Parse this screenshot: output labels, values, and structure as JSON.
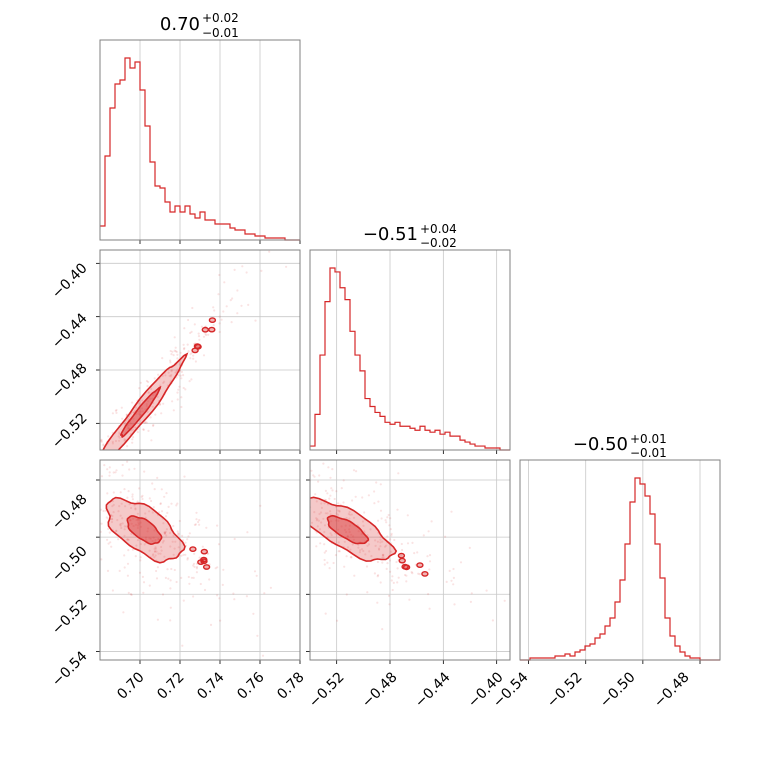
{
  "chart_data": {
    "type": "corner",
    "color": "#d62728",
    "grid": true,
    "params": [
      {
        "title": {
          "value": "0.70",
          "plus": "+0.02",
          "minus": "−0.01"
        },
        "range": [
          0.68,
          0.78
        ],
        "ticks": [
          0.7,
          0.72,
          0.74,
          0.76,
          0.78
        ],
        "tick_labels": [
          "0.70",
          "0.72",
          "0.74",
          "0.76",
          "0.78"
        ]
      },
      {
        "title": {
          "value": "−0.51",
          "plus": "+0.04",
          "minus": "−0.02"
        },
        "range": [
          -0.54,
          -0.39
        ],
        "ticks": [
          -0.52,
          -0.48,
          -0.44,
          -0.4
        ],
        "tick_labels": [
          "−0.52",
          "−0.48",
          "−0.44",
          "−0.40"
        ]
      },
      {
        "title": {
          "value": "−0.50",
          "plus": "+0.01",
          "minus": "−0.01"
        },
        "range": [
          -0.543,
          -0.473
        ],
        "ticks": [
          -0.54,
          -0.52,
          -0.5,
          -0.48
        ],
        "tick_labels": [
          "−0.54",
          "−0.52",
          "−0.50",
          "−0.48"
        ]
      }
    ],
    "histograms": [
      {
        "param": 0,
        "bin_edges": [
          0.68,
          0.6825,
          0.685,
          0.6875,
          0.69,
          0.6925,
          0.695,
          0.6975,
          0.7,
          0.7025,
          0.705,
          0.7075,
          0.71,
          0.7125,
          0.715,
          0.7175,
          0.72,
          0.7225,
          0.725,
          0.7275,
          0.73,
          0.7325,
          0.735,
          0.7375,
          0.74,
          0.7425,
          0.745,
          0.7475,
          0.75,
          0.7525,
          0.755,
          0.7575,
          0.76,
          0.7625,
          0.765,
          0.7675,
          0.77,
          0.7725,
          0.775,
          0.7775,
          0.78
        ],
        "counts": [
          0.07,
          0.42,
          0.66,
          0.78,
          0.8,
          0.91,
          0.86,
          0.89,
          0.75,
          0.57,
          0.39,
          0.27,
          0.26,
          0.19,
          0.14,
          0.17,
          0.14,
          0.17,
          0.13,
          0.11,
          0.14,
          0.1,
          0.1,
          0.08,
          0.08,
          0.08,
          0.06,
          0.05,
          0.05,
          0.03,
          0.03,
          0.02,
          0.02,
          0.01,
          0.01,
          0.01,
          0.01,
          0.0,
          0.0,
          0.0
        ]
      },
      {
        "param": 1,
        "bin_edges": [
          -0.54,
          -0.53625,
          -0.5325,
          -0.52875,
          -0.525,
          -0.52125,
          -0.5175,
          -0.51375,
          -0.51,
          -0.50625,
          -0.5025,
          -0.49875,
          -0.495,
          -0.49125,
          -0.4875,
          -0.48375,
          -0.48,
          -0.47625,
          -0.4725,
          -0.46875,
          -0.465,
          -0.46125,
          -0.4575,
          -0.45375,
          -0.45,
          -0.44625,
          -0.4425,
          -0.43875,
          -0.435,
          -0.43125,
          -0.4275,
          -0.42375,
          -0.42,
          -0.41625,
          -0.4125,
          -0.40875,
          -0.405,
          -0.40125,
          -0.3975,
          -0.39375,
          -0.39
        ],
        "counts": [
          0.02,
          0.18,
          0.48,
          0.75,
          0.92,
          0.9,
          0.82,
          0.76,
          0.6,
          0.48,
          0.4,
          0.26,
          0.22,
          0.19,
          0.17,
          0.14,
          0.13,
          0.14,
          0.12,
          0.12,
          0.11,
          0.1,
          0.12,
          0.1,
          0.09,
          0.1,
          0.08,
          0.09,
          0.07,
          0.07,
          0.05,
          0.04,
          0.03,
          0.02,
          0.02,
          0.01,
          0.01,
          0.01,
          0.0,
          0.0
        ]
      },
      {
        "param": 2,
        "bin_edges": [
          -0.543,
          -0.54125,
          -0.5395,
          -0.53775,
          -0.536,
          -0.53425,
          -0.5325,
          -0.53075,
          -0.529,
          -0.52725,
          -0.5255,
          -0.52375,
          -0.522,
          -0.52025,
          -0.5185,
          -0.51675,
          -0.515,
          -0.51325,
          -0.5115,
          -0.50975,
          -0.508,
          -0.50625,
          -0.5045,
          -0.50275,
          -0.501,
          -0.49925,
          -0.4975,
          -0.49575,
          -0.494,
          -0.49225,
          -0.4905,
          -0.48875,
          -0.487,
          -0.48525,
          -0.4835,
          -0.48175,
          -0.48,
          -0.47825,
          -0.4765,
          -0.47475,
          -0.473
        ],
        "counts": [
          0.0,
          0.0,
          0.01,
          0.01,
          0.01,
          0.01,
          0.01,
          0.02,
          0.02,
          0.03,
          0.02,
          0.04,
          0.05,
          0.07,
          0.08,
          0.11,
          0.13,
          0.17,
          0.21,
          0.29,
          0.4,
          0.58,
          0.79,
          0.91,
          0.88,
          0.82,
          0.73,
          0.58,
          0.41,
          0.21,
          0.12,
          0.07,
          0.04,
          0.02,
          0.01,
          0.01,
          0.0,
          0.0,
          0.0,
          0.0
        ]
      }
    ],
    "scatter_panels": [
      {
        "x_param": 0,
        "y_param": 1,
        "center": [
          0.7,
          -0.512
        ],
        "sd": [
          0.016,
          0.03
        ],
        "correlation": 0.97,
        "inner_level": 0.6,
        "outer_level": 1.35
      },
      {
        "x_param": 0,
        "y_param": 2,
        "center": [
          0.702,
          -0.4975
        ],
        "sd": [
          0.014,
          0.008
        ],
        "correlation": -0.6,
        "inner_level": 0.6,
        "outer_level": 1.35
      },
      {
        "x_param": 1,
        "y_param": 2,
        "center": [
          -0.512,
          -0.4975
        ],
        "sd": [
          0.025,
          0.008
        ],
        "correlation": -0.72,
        "inner_level": 0.6,
        "outer_level": 1.35
      }
    ]
  }
}
